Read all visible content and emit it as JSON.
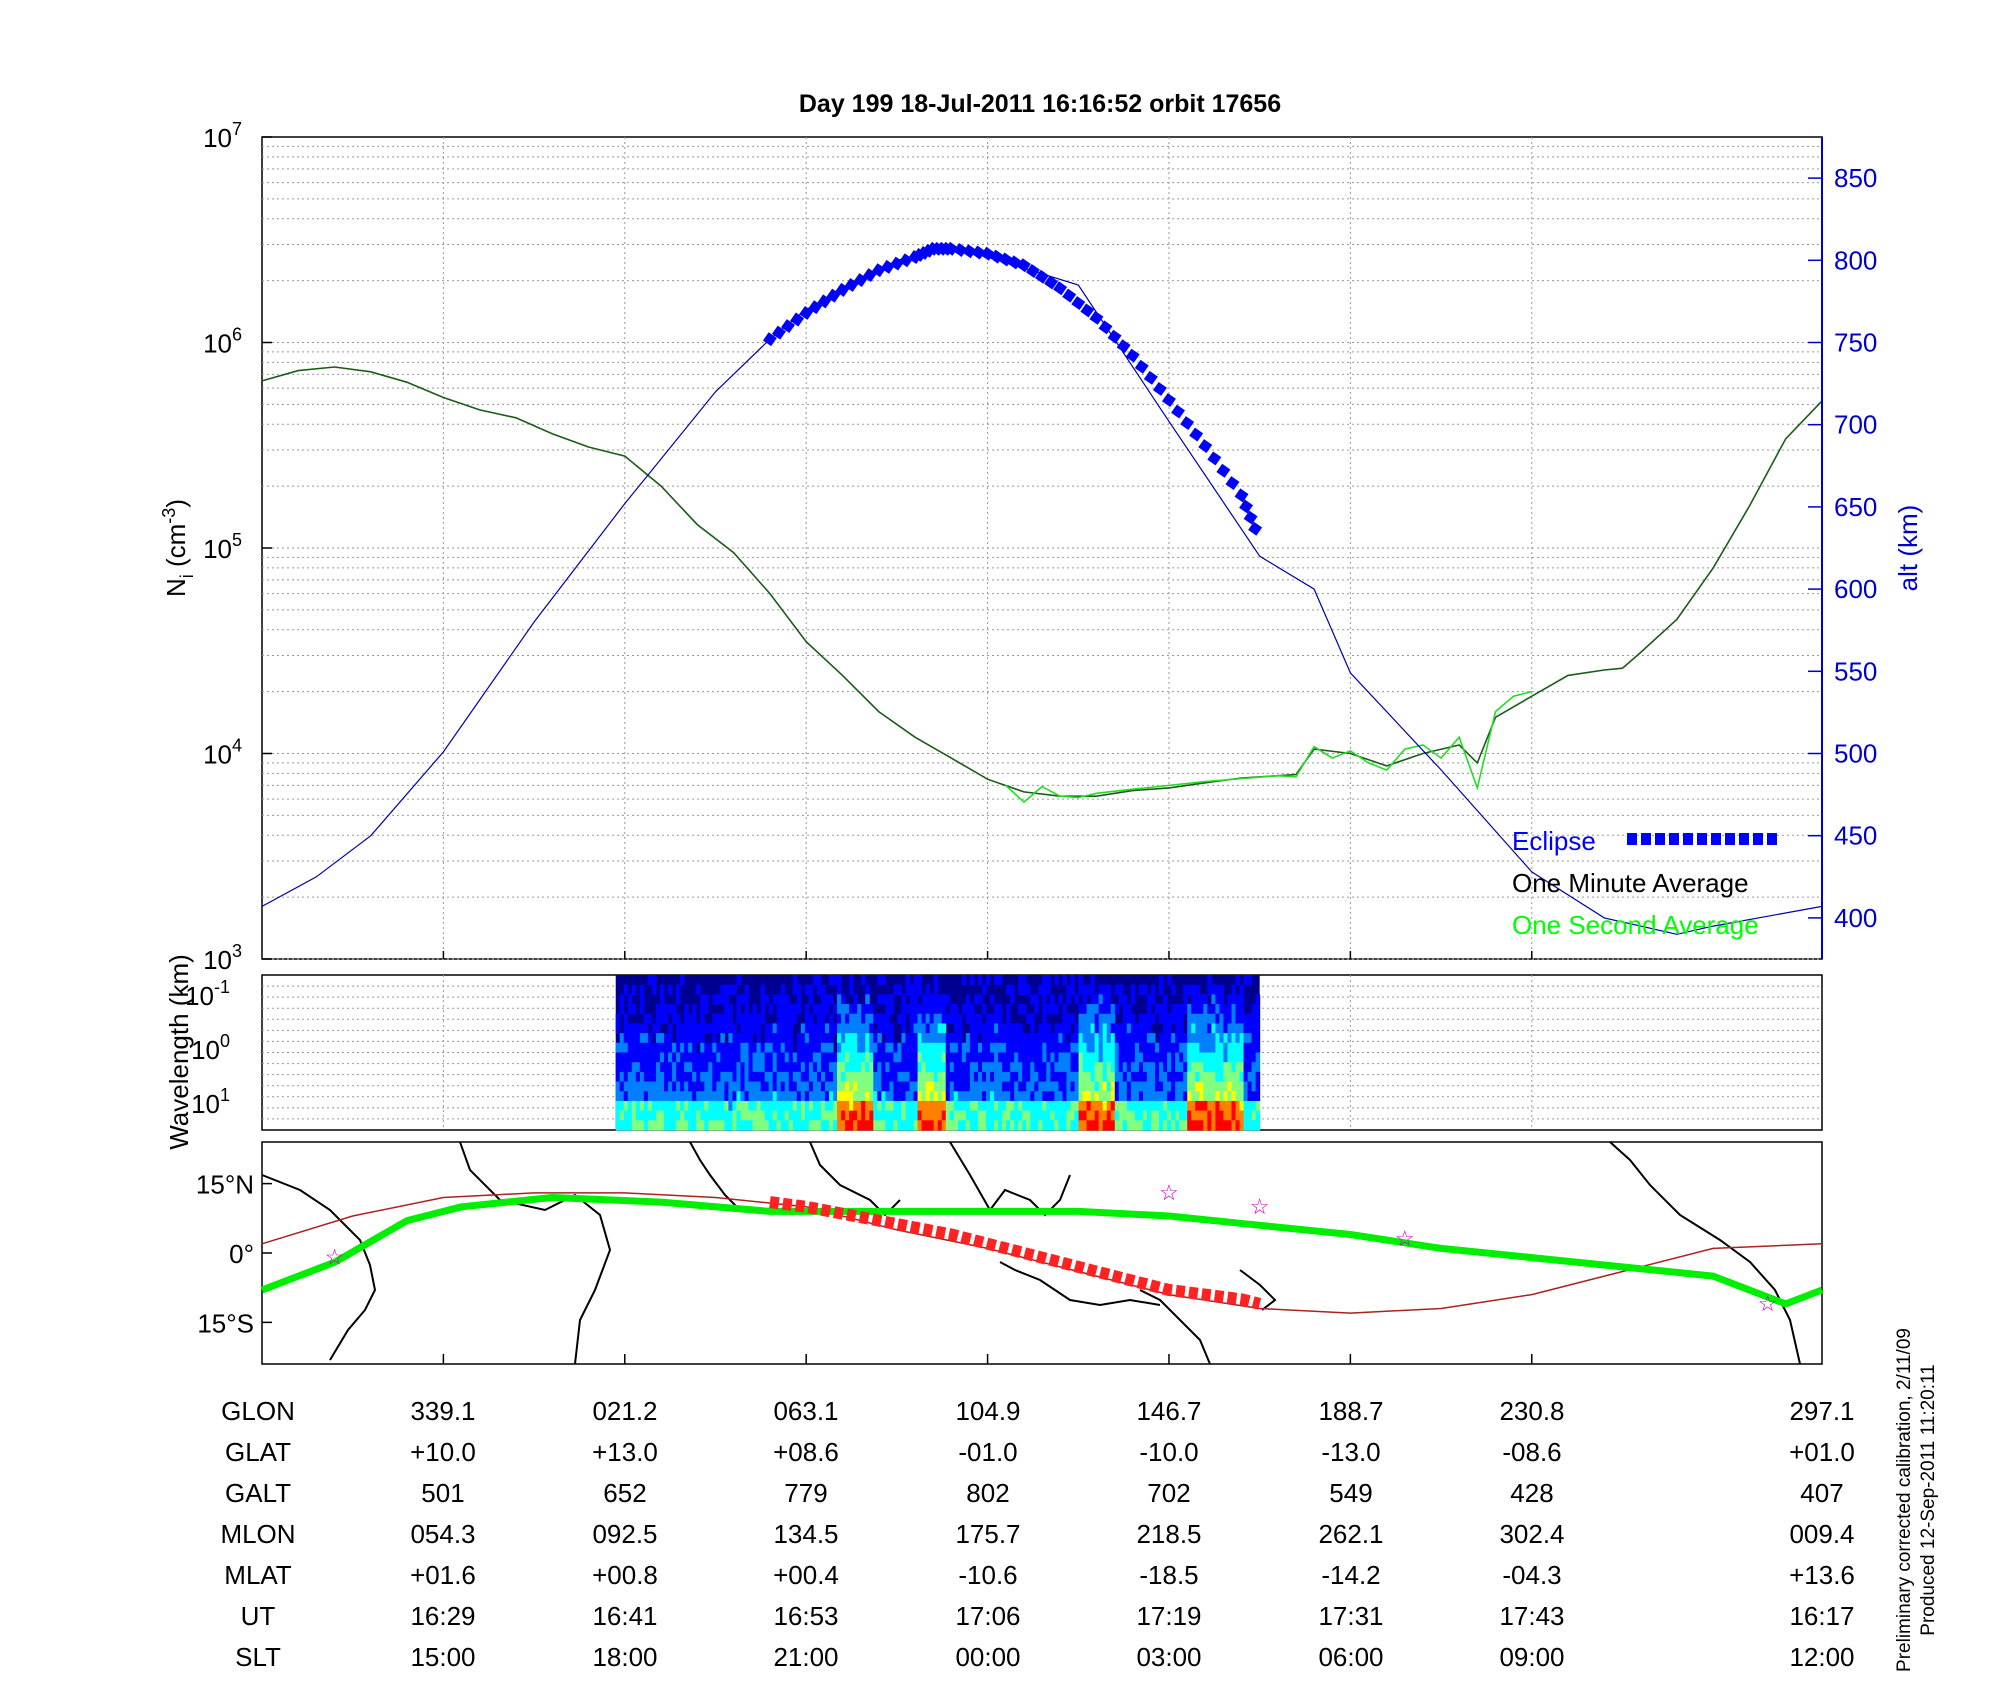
{
  "figure": {
    "title": "Day 199  18-Jul-2011 16:16:52   orbit 17656",
    "side_notes": [
      "Preliminary corrected calibration, 2/11/09",
      "Produced 12-Sep-2011 11:20:11"
    ]
  },
  "chart_data": [
    {
      "type": "line",
      "panel": "density",
      "ylabel": "N_i (cm^-3)",
      "y2label": "alt (km)",
      "yscale": "log",
      "ylim": [
        1000,
        10000000
      ],
      "ytick_labels": [
        "10^3",
        "10^4",
        "10^5",
        "10^6",
        "10^7"
      ],
      "y2lim": [
        375,
        875
      ],
      "y2ticks": [
        400,
        450,
        500,
        550,
        600,
        650,
        700,
        750,
        800,
        850
      ],
      "x_unit": "UT minutes after 16:16:52",
      "xlim": [
        0,
        86
      ],
      "xgrid": [
        10,
        20,
        30,
        40,
        50,
        60,
        70
      ],
      "grid": true,
      "legend_position": "lower-right",
      "legend": [
        {
          "label": "Eclipse",
          "color": "#0000ff",
          "style": "dotted-thick"
        },
        {
          "label": "One Minute Average",
          "color": "#000000",
          "style": "line"
        },
        {
          "label": "One Second Average",
          "color": "#00ff00",
          "style": "line"
        }
      ],
      "series": [
        {
          "name": "One Minute Average",
          "axis": "left",
          "color": "#1a5c1a",
          "points": [
            [
              0,
              650000
            ],
            [
              2,
              730000
            ],
            [
              4,
              760000
            ],
            [
              6,
              720000
            ],
            [
              8,
              640000
            ],
            [
              10,
              540000
            ],
            [
              12,
              470000
            ],
            [
              14,
              430000
            ],
            [
              16,
              360000
            ],
            [
              18,
              310000
            ],
            [
              20,
              280000
            ],
            [
              22,
              200000
            ],
            [
              24,
              130000
            ],
            [
              26,
              95000
            ],
            [
              28,
              60000
            ],
            [
              30,
              35000
            ],
            [
              32,
              24000
            ],
            [
              34,
              16000
            ],
            [
              36,
              12000
            ],
            [
              38,
              9500
            ],
            [
              40,
              7500
            ],
            [
              42,
              6500
            ],
            [
              44,
              6200
            ],
            [
              46,
              6200
            ],
            [
              48,
              6600
            ],
            [
              50,
              6800
            ],
            [
              52,
              7200
            ],
            [
              54,
              7600
            ],
            [
              56,
              7800
            ],
            [
              57,
              7900
            ],
            [
              58,
              10500
            ],
            [
              60,
              10000
            ],
            [
              62,
              8700
            ],
            [
              64,
              10000
            ],
            [
              66,
              11000
            ],
            [
              67,
              9000
            ],
            [
              68,
              15000
            ],
            [
              70,
              19000
            ],
            [
              72,
              24000
            ],
            [
              74,
              25500
            ],
            [
              75,
              26000
            ],
            [
              76,
              31000
            ],
            [
              78,
              45000
            ],
            [
              80,
              80000
            ],
            [
              82,
              160000
            ],
            [
              84,
              340000
            ],
            [
              86,
              520000
            ]
          ]
        },
        {
          "name": "One Second Average",
          "axis": "left",
          "color": "#22dd22",
          "points": [
            [
              41,
              7000
            ],
            [
              42,
              5800
            ],
            [
              43,
              6900
            ],
            [
              44,
              6200
            ],
            [
              45,
              6100
            ],
            [
              46,
              6400
            ],
            [
              48,
              6700
            ],
            [
              52,
              7300
            ],
            [
              56,
              7800
            ],
            [
              57,
              7700
            ],
            [
              58,
              10800
            ],
            [
              59,
              9500
            ],
            [
              60,
              10300
            ],
            [
              61,
              9000
            ],
            [
              62,
              8300
            ],
            [
              63,
              10500
            ],
            [
              64,
              11000
            ],
            [
              65,
              9500
            ],
            [
              66,
              12000
            ],
            [
              67,
              6800
            ],
            [
              68,
              16000
            ],
            [
              69,
              19000
            ],
            [
              70,
              20000
            ]
          ]
        },
        {
          "name": "alt (km)",
          "axis": "right",
          "color": "#0000aa",
          "style": "line",
          "points": [
            [
              0,
              407
            ],
            [
              3,
              425
            ],
            [
              6,
              450
            ],
            [
              10,
              501
            ],
            [
              15,
              580
            ],
            [
              20,
              652
            ],
            [
              25,
              720
            ],
            [
              28,
              752
            ],
            [
              30,
              770
            ],
            [
              35,
              800
            ],
            [
              38,
              807
            ],
            [
              40,
              802
            ],
            [
              45,
              785
            ],
            [
              50,
              702
            ],
            [
              55,
              620
            ],
            [
              58,
              600
            ],
            [
              60,
              549
            ],
            [
              65,
              490
            ],
            [
              70,
              428
            ],
            [
              74,
              400
            ],
            [
              78,
              390
            ],
            [
              80,
              395
            ],
            [
              86,
              407
            ]
          ]
        },
        {
          "name": "Eclipse",
          "axis": "right",
          "color": "#0000ff",
          "style": "eclipse",
          "points": [
            [
              28,
              752
            ],
            [
              30,
              768
            ],
            [
              32,
              782
            ],
            [
              34,
              794
            ],
            [
              36,
              802
            ],
            [
              37,
              807
            ],
            [
              38,
              807
            ],
            [
              40,
              804
            ],
            [
              42,
              797
            ],
            [
              44,
              783
            ],
            [
              46,
              765
            ],
            [
              48,
              742
            ],
            [
              50,
              715
            ],
            [
              52,
              687
            ],
            [
              54,
              657
            ],
            [
              55,
              630
            ]
          ]
        }
      ]
    },
    {
      "type": "heatmap",
      "panel": "spectrogram",
      "ylabel": "Wavelength (km)",
      "ytick_labels": [
        "10^-1",
        "10^0",
        "10^1"
      ],
      "data_span_x": [
        19.5,
        55
      ],
      "colormap": [
        "#000090",
        "#0000ff",
        "#0080ff",
        "#00ffff",
        "#80ff80",
        "#ffff00",
        "#ff8000",
        "#ff0000"
      ]
    },
    {
      "type": "line",
      "panel": "map",
      "ylabel_ticks": [
        "15°N",
        "0°",
        "15°S"
      ],
      "ylim": [
        -24,
        24
      ],
      "legend": [],
      "series": [
        {
          "name": "orbit track",
          "color": "#aa2222",
          "points": [
            [
              0,
              2
            ],
            [
              5,
              8
            ],
            [
              10,
              12
            ],
            [
              15,
              13
            ],
            [
              20,
              13
            ],
            [
              25,
              12
            ],
            [
              30,
              10
            ],
            [
              35,
              5
            ],
            [
              40,
              1
            ],
            [
              45,
              -4
            ],
            [
              50,
              -9
            ],
            [
              55,
              -12
            ],
            [
              60,
              -13
            ],
            [
              65,
              -12
            ],
            [
              70,
              -9
            ],
            [
              75,
              -4
            ],
            [
              80,
              1
            ],
            [
              86,
              2
            ]
          ]
        },
        {
          "name": "magnetic equator",
          "color": "#00ee00",
          "points": [
            [
              0,
              -8
            ],
            [
              4,
              -2
            ],
            [
              8,
              7
            ],
            [
              11,
              10
            ],
            [
              16,
              12
            ],
            [
              22,
              11
            ],
            [
              28,
              9
            ],
            [
              34,
              9
            ],
            [
              40,
              9
            ],
            [
              45,
              9
            ],
            [
              50,
              8
            ],
            [
              55,
              6
            ],
            [
              60,
              4
            ],
            [
              65,
              1
            ],
            [
              70,
              -1
            ],
            [
              75,
              -3
            ],
            [
              80,
              -5
            ],
            [
              84,
              -11
            ],
            [
              86,
              -8
            ]
          ]
        },
        {
          "name": "eclipse track",
          "color": "#ff2222",
          "points": [
            [
              28,
              11
            ],
            [
              30,
              10
            ],
            [
              34,
              7
            ],
            [
              38,
              4
            ],
            [
              42,
              0
            ],
            [
              45,
              -3
            ],
            [
              48,
              -6
            ],
            [
              50,
              -8
            ],
            [
              52,
              -9
            ],
            [
              54,
              -10
            ],
            [
              55,
              -11
            ]
          ]
        }
      ],
      "stars": [
        [
          4,
          -1
        ],
        [
          50,
          13
        ],
        [
          55,
          10
        ],
        [
          63,
          3
        ],
        [
          83,
          -11
        ]
      ]
    }
  ],
  "table": {
    "row_labels": [
      "GLON",
      "GLAT",
      "GALT",
      "MLON",
      "MLAT",
      "UT",
      "SLT"
    ],
    "columns": [
      [
        "339.1",
        "+10.0",
        "501",
        "054.3",
        "+01.6",
        "16:29",
        "15:00"
      ],
      [
        "021.2",
        "+13.0",
        "652",
        "092.5",
        "+00.8",
        "16:41",
        "18:00"
      ],
      [
        "063.1",
        "+08.6",
        "779",
        "134.5",
        "+00.4",
        "16:53",
        "21:00"
      ],
      [
        "104.9",
        "-01.0",
        "802",
        "175.7",
        "-10.6",
        "17:06",
        "00:00"
      ],
      [
        "146.7",
        "-10.0",
        "702",
        "218.5",
        "-18.5",
        "17:19",
        "03:00"
      ],
      [
        "188.7",
        "-13.0",
        "549",
        "262.1",
        "-14.2",
        "17:31",
        "06:00"
      ],
      [
        "230.8",
        "-08.6",
        "428",
        "302.4",
        "-04.3",
        "17:43",
        "09:00"
      ],
      [
        "297.1",
        "+01.0",
        "407",
        "009.4",
        "+13.6",
        "16:17",
        "12:00"
      ]
    ]
  }
}
